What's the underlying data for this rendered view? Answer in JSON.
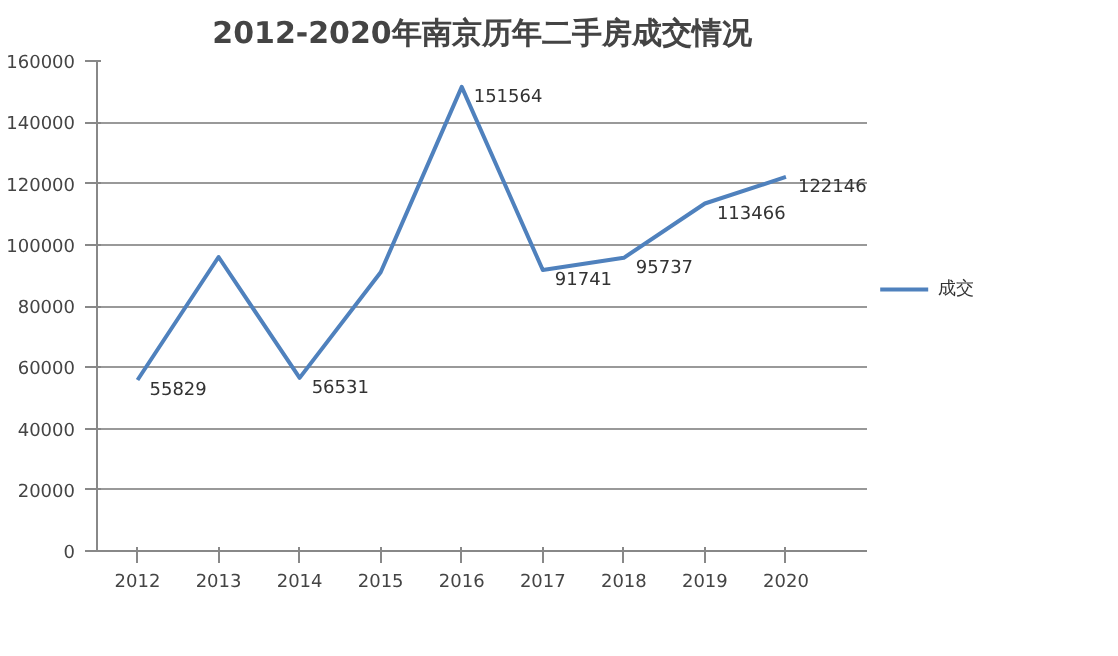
{
  "chart_data": {
    "type": "line",
    "title": "2012-2020年南京历年二手房成交情况",
    "categories": [
      "2012",
      "2013",
      "2014",
      "2015",
      "2016",
      "2017",
      "2018",
      "2019",
      "2020"
    ],
    "series": [
      {
        "name": "成交",
        "color": "#4f81bd",
        "values": [
          55829,
          96000,
          56531,
          91000,
          151564,
          91741,
          95737,
          113466,
          122146
        ],
        "value_labels": [
          "55829",
          null,
          "56531",
          null,
          "151564",
          "91741",
          "95737",
          "113466",
          "122146"
        ]
      }
    ],
    "ylim": [
      0,
      160000
    ],
    "yticks": [
      0,
      20000,
      40000,
      60000,
      80000,
      100000,
      120000,
      140000,
      160000
    ],
    "grid": "y",
    "legend": "right",
    "marker": "none",
    "line_style": "solid"
  }
}
